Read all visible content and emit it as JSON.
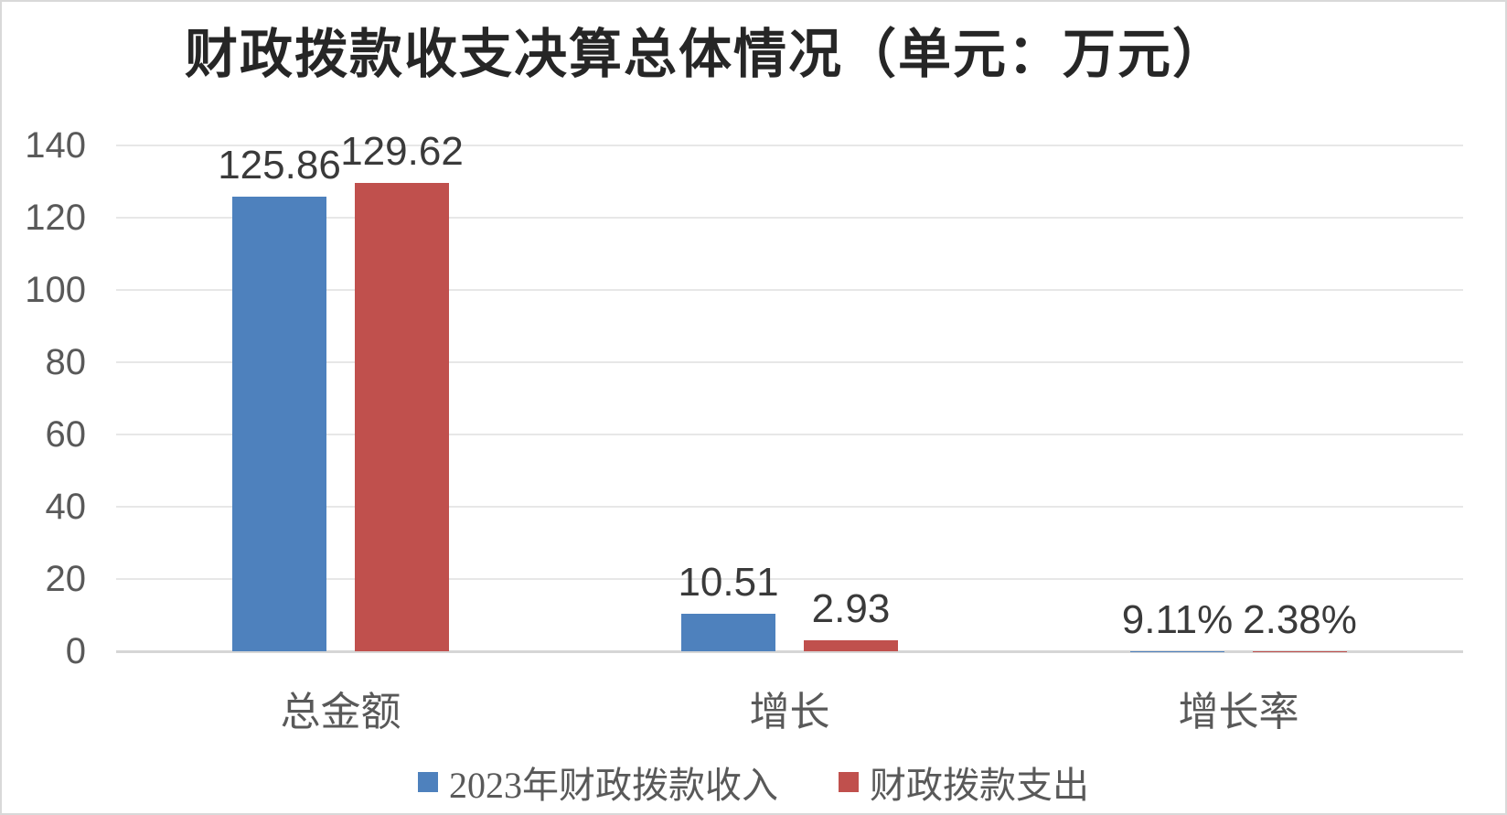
{
  "chart_data": {
    "type": "bar",
    "title": "财政拨款收支决算总体情况（单元：万元）",
    "categories": [
      "总金额",
      "增长",
      "增长率"
    ],
    "series": [
      {
        "name": "2023年财政拨款收入",
        "color": "#4e81bd",
        "values": [
          125.86,
          10.51,
          0.0911
        ],
        "data_labels": [
          "125.86",
          "10.51",
          "9.11%"
        ]
      },
      {
        "name": "财政拨款支出",
        "color": "#c0504d",
        "values": [
          129.62,
          2.93,
          0.0238
        ],
        "data_labels": [
          "129.62",
          "2.93",
          "2.38%"
        ]
      }
    ],
    "ylim": [
      0,
      140
    ],
    "yticks": [
      0,
      20,
      40,
      60,
      80,
      100,
      120,
      140
    ],
    "grid": "horizontal",
    "legend_position": "bottom"
  },
  "colors": {
    "series_income": "#4e81bd",
    "series_expense": "#c0504d",
    "gridline": "#e7e7e7",
    "axis_line": "#d6d6d6",
    "tick_text": "#595959",
    "data_label_text": "#3a3a3a",
    "title_text": "#262626",
    "frame_border": "#d9d9d9"
  }
}
